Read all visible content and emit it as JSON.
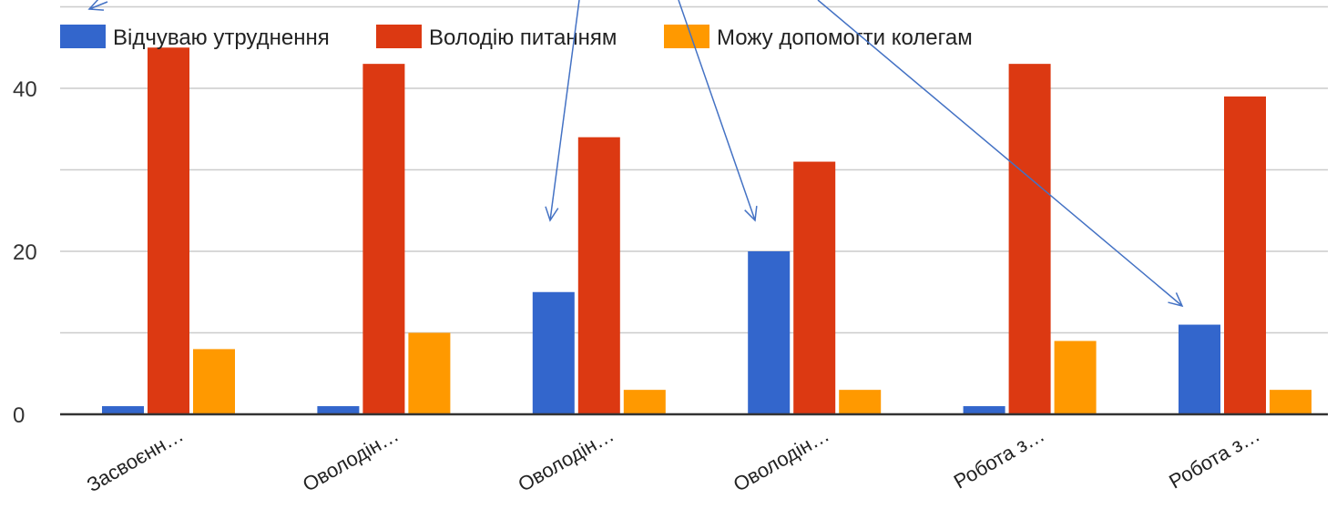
{
  "chart_data": {
    "type": "bar",
    "title": "",
    "xlabel": "",
    "ylabel": "",
    "ylim": [
      0,
      50
    ],
    "yticks": [
      0,
      20,
      40
    ],
    "gridlines": [
      0,
      10,
      20,
      30,
      40,
      50
    ],
    "legend_position": "top-left",
    "categories": [
      "Засвоєнн…",
      "Оволодін…",
      "Оволодін…",
      "Оволодін…",
      "Робота з…",
      "Робота з…"
    ],
    "series": [
      {
        "name": "Відчуваю утруднення",
        "color": "#3366cc",
        "values": [
          1,
          1,
          15,
          20,
          1,
          11
        ]
      },
      {
        "name": "Володію питанням",
        "color": "#dc3912",
        "values": [
          45,
          43,
          34,
          31,
          43,
          39
        ]
      },
      {
        "name": "Можу допомогти колегам",
        "color": "#ff9900",
        "values": [
          8,
          10,
          3,
          3,
          9,
          3
        ]
      }
    ],
    "annotations": "arrows pointing to the blue bars of categories 3, 4 and 6"
  }
}
